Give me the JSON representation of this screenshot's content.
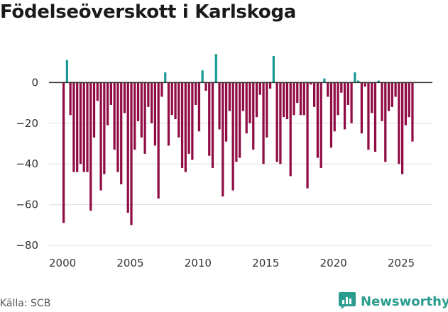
{
  "header": {
    "title": "Födelseöverskott i Karlskoga"
  },
  "footer": {
    "source": "Källa: SCB",
    "brand": "Newsworthy"
  },
  "colors": {
    "positive": "#1a9a94",
    "negative": "#900c45",
    "grid": "#dddddd",
    "zero": "#333333",
    "brand": "#2a9d8f"
  },
  "chart_data": {
    "type": "bar",
    "title": "Födelseöverskott i Karlskoga",
    "xlabel": "",
    "ylabel": "",
    "ylim": [
      -80,
      20
    ],
    "xlim": [
      1999.0,
      2027.3
    ],
    "yticks": [
      0,
      -20,
      -40,
      -60,
      -80
    ],
    "ytick_labels": [
      "0",
      "−20",
      "−40",
      "−60",
      "−80"
    ],
    "xticks": [
      2000,
      2005,
      2010,
      2015,
      2020,
      2025
    ],
    "xtick_labels": [
      "2000",
      "2005",
      "2010",
      "2015",
      "2020",
      "2025"
    ],
    "series": [
      {
        "name": "Födelseöverskott",
        "bar_width": 0.17,
        "x": [
          2000.08,
          2000.33,
          2000.58,
          2000.83,
          2001.08,
          2001.33,
          2001.58,
          2001.83,
          2002.08,
          2002.33,
          2002.58,
          2002.83,
          2003.08,
          2003.33,
          2003.58,
          2003.83,
          2004.08,
          2004.33,
          2004.58,
          2004.83,
          2005.08,
          2005.33,
          2005.58,
          2005.83,
          2006.08,
          2006.33,
          2006.58,
          2006.83,
          2007.08,
          2007.33,
          2007.58,
          2007.83,
          2008.08,
          2008.33,
          2008.58,
          2008.83,
          2009.08,
          2009.33,
          2009.58,
          2009.83,
          2010.08,
          2010.33,
          2010.58,
          2010.83,
          2011.08,
          2011.33,
          2011.58,
          2011.83,
          2012.08,
          2012.33,
          2012.58,
          2012.83,
          2013.08,
          2013.33,
          2013.58,
          2013.83,
          2014.08,
          2014.33,
          2014.58,
          2014.83,
          2015.08,
          2015.33,
          2015.58,
          2015.83,
          2016.08,
          2016.33,
          2016.58,
          2016.83,
          2017.08,
          2017.33,
          2017.58,
          2017.83,
          2018.08,
          2018.33,
          2018.58,
          2018.83,
          2019.08,
          2019.33,
          2019.58,
          2019.83,
          2020.08,
          2020.33,
          2020.58,
          2020.83,
          2021.08,
          2021.33,
          2021.58,
          2021.83,
          2022.08,
          2022.33,
          2022.58,
          2022.83,
          2023.08,
          2023.33,
          2023.58,
          2023.83,
          2024.08,
          2024.33,
          2024.58,
          2024.83,
          2025.08,
          2025.33,
          2025.58,
          2025.83
        ],
        "values": [
          -69,
          11,
          -16,
          -44,
          -44,
          -40,
          -44,
          -44,
          -63,
          -27,
          -9,
          -53,
          -45,
          -21,
          -11,
          -33,
          -44,
          -50,
          -15,
          -64,
          -70,
          -33,
          -19,
          -27,
          -35,
          -12,
          -20,
          -31,
          -57,
          -7,
          5,
          -31,
          -16,
          -18,
          -27,
          -42,
          -44,
          -35,
          -38,
          -11,
          -24,
          6,
          -4,
          -36,
          -42,
          14,
          -23,
          -56,
          -29,
          -14,
          -53,
          -39,
          -37,
          -14,
          -25,
          -20,
          -33,
          -17,
          -6,
          -40,
          -27,
          -3,
          13,
          -39,
          -40,
          -17,
          -18,
          -46,
          -16,
          -10,
          -16,
          -16,
          -52,
          -1,
          -12,
          -37,
          -42,
          2,
          -7,
          -32,
          -24,
          -16,
          -5,
          -23,
          -11,
          -20,
          5,
          1,
          -25,
          -2,
          -33,
          -15,
          -34,
          1,
          -19,
          -39,
          -14,
          -12,
          -7,
          -40,
          -45,
          -21,
          -17,
          -29
        ]
      }
    ]
  }
}
